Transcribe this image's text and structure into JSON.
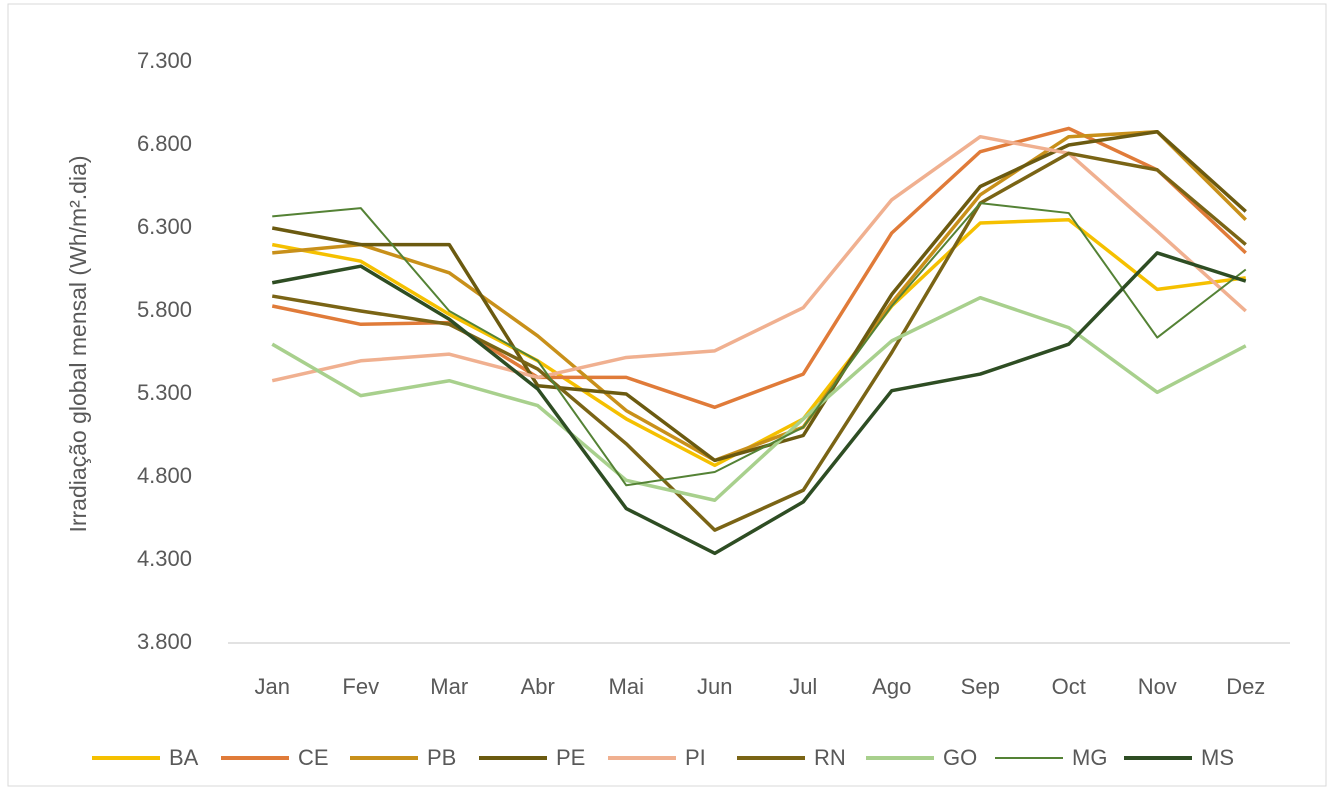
{
  "chart_data": {
    "type": "line",
    "y_label": "Irradiação global mensal (Wh/m².dia)",
    "categories": [
      "Jan",
      "Fev",
      "Mar",
      "Abr",
      "Mai",
      "Jun",
      "Jul",
      "Ago",
      "Sep",
      "Oct",
      "Nov",
      "Dez"
    ],
    "ylim": [
      3800,
      7300
    ],
    "yticks": [
      {
        "value": 3800,
        "label": "3.800"
      },
      {
        "value": 4300,
        "label": "4.300"
      },
      {
        "value": 4800,
        "label": "4.800"
      },
      {
        "value": 5300,
        "label": "5.300"
      },
      {
        "value": 5800,
        "label": "5.800"
      },
      {
        "value": 6300,
        "label": "6.300"
      },
      {
        "value": 6800,
        "label": "6.800"
      },
      {
        "value": 7300,
        "label": "7.300"
      }
    ],
    "grid": false,
    "legend": "bottom",
    "series": [
      {
        "name": "BA",
        "color": "#f5c000",
        "values": [
          6200,
          6100,
          5780,
          5500,
          5150,
          4870,
          5150,
          5830,
          6330,
          6350,
          5930,
          6000
        ]
      },
      {
        "name": "CE",
        "color": "#e07b39",
        "values": [
          5830,
          5720,
          5730,
          5400,
          5400,
          5220,
          5420,
          6270,
          6760,
          6900,
          6650,
          6150
        ]
      },
      {
        "name": "PB",
        "color": "#c8901a",
        "values": [
          6150,
          6200,
          6030,
          5650,
          5200,
          4900,
          5100,
          5850,
          6500,
          6850,
          6880,
          6350
        ]
      },
      {
        "name": "PE",
        "color": "#6b5a10",
        "values": [
          6300,
          6200,
          6200,
          5350,
          5300,
          4900,
          5050,
          5900,
          6550,
          6800,
          6880,
          6400
        ]
      },
      {
        "name": "PI",
        "color": "#f0b090",
        "values": [
          5380,
          5500,
          5540,
          5400,
          5520,
          5560,
          5820,
          6470,
          6850,
          6750,
          6280,
          5800
        ]
      },
      {
        "name": "RN",
        "color": "#7a6415",
        "values": [
          5890,
          5800,
          5720,
          5450,
          5000,
          4480,
          4720,
          5550,
          6450,
          6750,
          6650,
          6200
        ]
      },
      {
        "name": "GO",
        "color": "#a8d08d",
        "values": [
          5600,
          5290,
          5380,
          5230,
          4780,
          4660,
          5150,
          5620,
          5880,
          5700,
          5310,
          5590
        ]
      },
      {
        "name": "MG",
        "color": "#548235",
        "width": 2,
        "values": [
          6370,
          6420,
          5800,
          5500,
          4750,
          4830,
          5100,
          5830,
          6450,
          6390,
          5640,
          6050
        ]
      },
      {
        "name": "MS",
        "color": "#2e4d23",
        "values": [
          5970,
          6070,
          5750,
          5330,
          4610,
          4340,
          4650,
          5320,
          5420,
          5600,
          6150,
          5980
        ]
      }
    ]
  }
}
